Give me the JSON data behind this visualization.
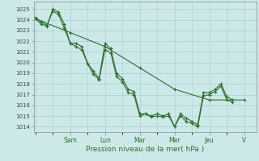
{
  "xlabel": "Pression niveau de la mer( hPa )",
  "ylim": [
    1013.5,
    1025.7
  ],
  "yticks": [
    1014,
    1015,
    1016,
    1017,
    1018,
    1019,
    1020,
    1021,
    1022,
    1023,
    1024,
    1025
  ],
  "day_labels": [
    "Sam",
    "Lun",
    "Mar",
    "Mer",
    "Jeu",
    "V"
  ],
  "day_positions": [
    2,
    4,
    6,
    8,
    10,
    12
  ],
  "xlim": [
    -0.1,
    12.7
  ],
  "background_color": "#cce8e8",
  "grid_color": "#aad0d0",
  "line_color": "#2d6e2d",
  "slow_x": [
    0,
    2,
    4,
    6,
    8,
    10,
    12
  ],
  "slow_y": [
    1024.1,
    1022.8,
    1021.5,
    1019.5,
    1017.5,
    1016.5,
    1016.5
  ],
  "line1_x": [
    0,
    0.33,
    0.66,
    1.0,
    1.33,
    1.66,
    2.0,
    2.33,
    2.66,
    3.0,
    3.33,
    3.66,
    4.0,
    4.33,
    4.66,
    5.0,
    5.33,
    5.66,
    6.0,
    6.33,
    6.66,
    7.0,
    7.33,
    7.66,
    8.0,
    8.33,
    8.66,
    9.0,
    9.33,
    9.66,
    10.0,
    10.33,
    10.66,
    11.0,
    11.33
  ],
  "line1_y": [
    1024.1,
    1023.6,
    1023.4,
    1025.0,
    1024.7,
    1023.6,
    1021.8,
    1021.8,
    1021.5,
    1019.9,
    1019.2,
    1018.5,
    1021.8,
    1021.3,
    1019.0,
    1018.5,
    1017.5,
    1017.3,
    1015.2,
    1015.2,
    1014.9,
    1015.0,
    1014.9,
    1015.0,
    1014.0,
    1015.2,
    1014.8,
    1014.5,
    1014.2,
    1017.2,
    1017.2,
    1017.5,
    1018.0,
    1016.8,
    1016.5
  ],
  "line2_x": [
    0,
    0.33,
    0.66,
    1.0,
    1.33,
    1.66,
    2.0,
    2.33,
    2.66,
    3.0,
    3.33,
    3.66,
    4.0,
    4.33,
    4.66,
    5.0,
    5.33,
    5.66,
    6.0,
    6.33,
    6.66,
    7.0,
    7.33,
    7.66,
    8.0,
    8.33,
    8.66,
    9.0,
    9.33,
    9.66,
    10.0,
    10.33,
    10.66,
    11.0,
    11.33
  ],
  "line2_y": [
    1024.2,
    1023.8,
    1023.5,
    1024.8,
    1024.5,
    1023.2,
    1021.8,
    1021.5,
    1021.2,
    1019.9,
    1018.9,
    1018.4,
    1021.2,
    1020.9,
    1018.7,
    1018.2,
    1017.2,
    1017.0,
    1015.0,
    1015.2,
    1015.0,
    1015.2,
    1015.0,
    1015.2,
    1014.0,
    1015.0,
    1014.5,
    1014.3,
    1014.0,
    1016.9,
    1017.0,
    1017.3,
    1017.8,
    1016.5,
    1016.3
  ]
}
